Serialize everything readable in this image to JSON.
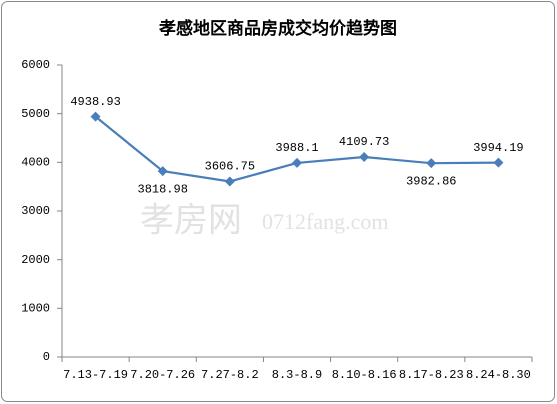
{
  "chart_data": {
    "type": "line",
    "title": "孝感地区商品房成交均价趋势图",
    "categories": [
      "7.13-7.19",
      "7.20-7.26",
      "7.27-8.2",
      "8.3-8.9",
      "8.10-8.16",
      "8.17-8.23",
      "8.24-8.30"
    ],
    "values": [
      4938.93,
      3818.98,
      3606.75,
      3988.1,
      4109.73,
      3982.86,
      3994.19
    ],
    "color": "#4a7ebb",
    "ylim": [
      0,
      6000
    ],
    "yticks": [
      0,
      1000,
      2000,
      3000,
      4000,
      5000,
      6000
    ],
    "grid": false,
    "watermark": [
      "孝房网",
      "0712fang.com"
    ]
  }
}
